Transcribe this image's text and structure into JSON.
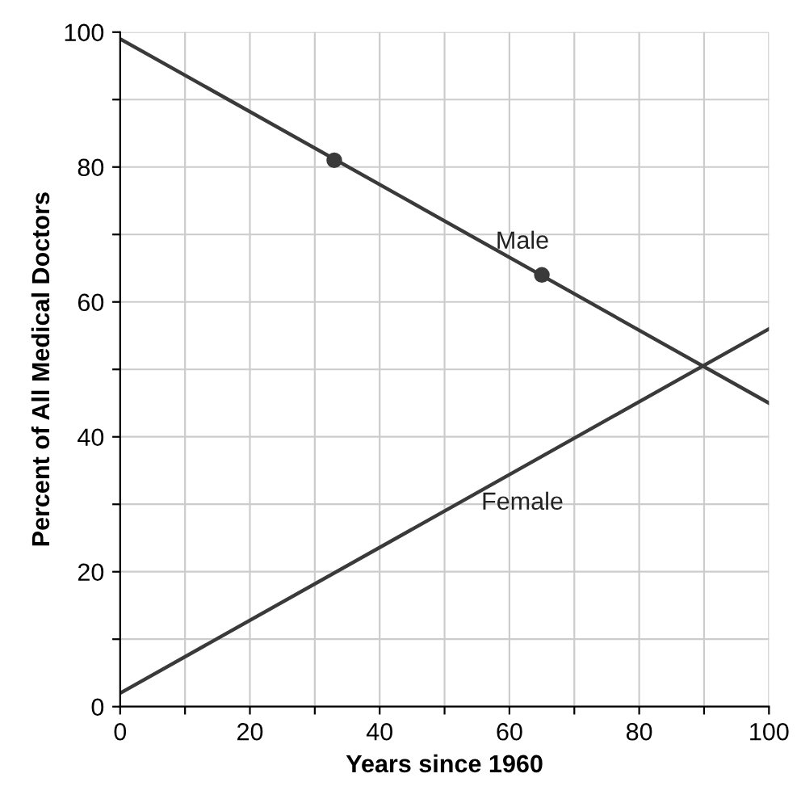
{
  "chart_data": {
    "type": "line",
    "xlabel": "Years since 1960",
    "ylabel": "Percent of All Medical Doctors",
    "xlim": [
      0,
      100
    ],
    "ylim": [
      0,
      100
    ],
    "xticks": [
      0,
      {
        "value": 10,
        "label": null
      },
      20,
      {
        "value": 30,
        "label": null
      },
      40,
      {
        "value": 50,
        "label": null
      },
      60,
      {
        "value": 70,
        "label": null
      },
      80,
      {
        "value": 90,
        "label": null
      },
      100
    ],
    "yticks": [
      0,
      {
        "value": 10,
        "label": null
      },
      20,
      {
        "value": 30,
        "label": null
      },
      40,
      {
        "value": 50,
        "label": null
      },
      60,
      {
        "value": 70,
        "label": null
      },
      80,
      {
        "value": 90,
        "label": null
      },
      100
    ],
    "grid": true,
    "legend": false,
    "series": [
      {
        "name": "Male",
        "color": "#3a3a3a",
        "x": [
          0,
          100
        ],
        "values": [
          99,
          45
        ]
      },
      {
        "name": "Female",
        "color": "#3a3a3a",
        "x": [
          0,
          100
        ],
        "values": [
          2,
          56
        ]
      },
      {
        "type": "scatter",
        "color": "#3a3a3a",
        "marker": "circle",
        "x": [
          33,
          65
        ],
        "values": [
          81,
          64
        ]
      }
    ]
  }
}
